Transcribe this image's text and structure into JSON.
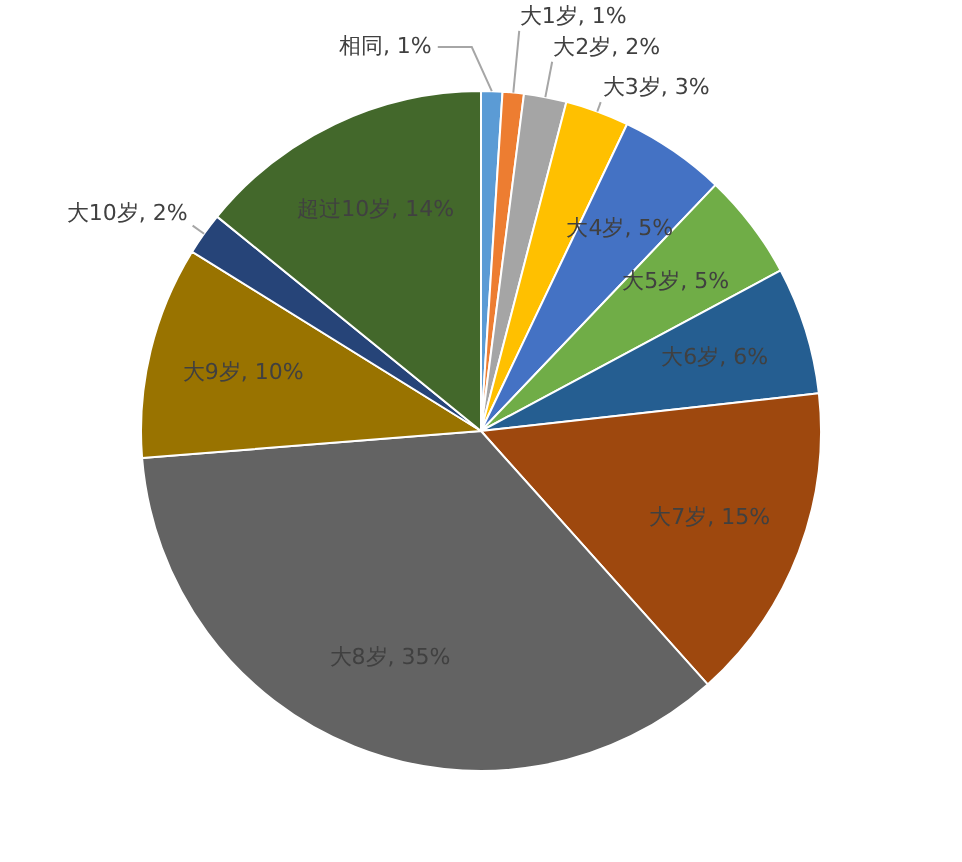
{
  "chart_data": {
    "type": "pie",
    "categories": [
      "相同",
      "大1岁",
      "大2岁",
      "大3岁",
      "大4岁",
      "大5岁",
      "大6岁",
      "大7岁",
      "大8岁",
      "大9岁",
      "大10岁",
      "超过10岁"
    ],
    "values": [
      1,
      1,
      2,
      3,
      5,
      5,
      6,
      15,
      35,
      10,
      2,
      14
    ],
    "value_labels": [
      "1%",
      "1%",
      "2%",
      "3%",
      "5%",
      "5%",
      "6%",
      "15%",
      "35%",
      "10%",
      "2%",
      "14%"
    ],
    "colors": [
      "#5b9bd5",
      "#ed7d31",
      "#a5a5a5",
      "#ffc000",
      "#4472c4",
      "#70ad47",
      "#255e91",
      "#9e480e",
      "#636363",
      "#997300",
      "#264478",
      "#43682b"
    ],
    "legend": false
  }
}
